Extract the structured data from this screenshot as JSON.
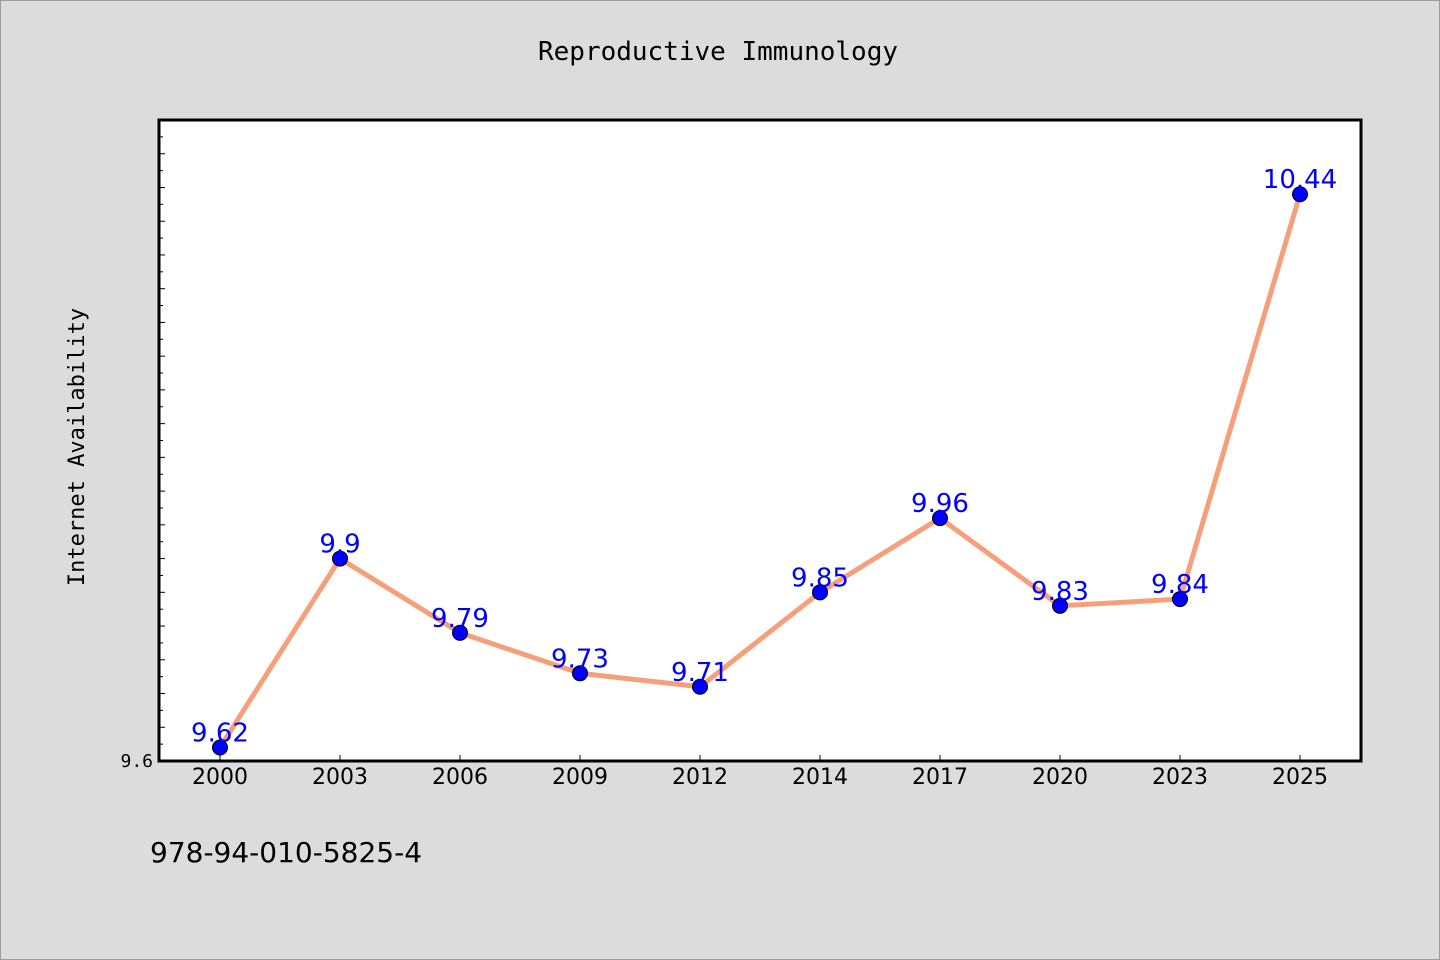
{
  "footer": {
    "code": "978-94-010-5825-4"
  },
  "colors": {
    "background": "#dcdcdc",
    "plot_background": "#ffffff",
    "line": "#f5a07a",
    "marker": "#0000ff",
    "data_label": "#0000ff"
  },
  "chart_data": {
    "type": "line",
    "title": "Reproductive Immunology",
    "xlabel": "",
    "ylabel": "Internet Availability",
    "categories": [
      "2000",
      "2003",
      "2006",
      "2009",
      "2012",
      "2014",
      "2017",
      "2020",
      "2023",
      "2025"
    ],
    "series": [
      {
        "values": [
          9.62,
          9.9,
          9.79,
          9.73,
          9.71,
          9.85,
          9.96,
          9.83,
          9.84,
          10.44
        ],
        "labels": [
          "9.62",
          "9.9",
          "9.79",
          "9.73",
          "9.71",
          "9.85",
          "9.96",
          "9.83",
          "9.84",
          "10.44"
        ]
      }
    ],
    "ylim": [
      9.6,
      10.55
    ],
    "y_tick_labels": [
      "9.6"
    ],
    "grid": false,
    "legend": "none",
    "markers": "filled-circle",
    "data_labels": true
  }
}
